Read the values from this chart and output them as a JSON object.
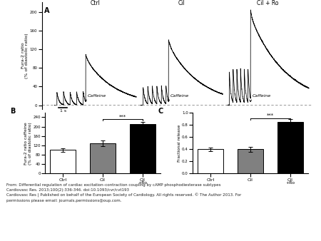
{
  "title_A": "A",
  "title_B": "B",
  "title_C": "C",
  "condition_labels": [
    "Ctrl",
    "Cil",
    "Cil + Ro"
  ],
  "caffeine_label": "Caffeine",
  "bar_categories": [
    "Ctrl",
    "Cil",
    "Cil\n+Ro"
  ],
  "bar_values_B": [
    100,
    130,
    210
  ],
  "bar_errors_B": [
    8,
    12,
    10
  ],
  "bar_values_C": [
    0.4,
    0.4,
    0.85
  ],
  "bar_errors_C": [
    0.03,
    0.04,
    0.04
  ],
  "bar_colors": [
    "white",
    "#808080",
    "black"
  ],
  "bar_edgecolor": "black",
  "ylabel_B": "Fura-2 ratio caffeine\n(% of diastolic ratio)",
  "ylabel_C": "Fractional release",
  "ylim_B": [
    0,
    260
  ],
  "ylim_C": [
    0.0,
    1.0
  ],
  "yticks_B": [
    0,
    40,
    80,
    120,
    160,
    200,
    240
  ],
  "yticks_C": [
    0.0,
    0.2,
    0.4,
    0.6,
    0.8,
    1.0
  ],
  "sig_label": "***",
  "trace_ylabel": "Fura-2 ratio\n(% of diastolic ratio)",
  "trace_yticks": [
    0,
    40,
    80,
    120,
    160,
    200
  ],
  "timescale_label": "1 s",
  "footer_line1": "From: Differential regulation of cardiac excitation–contraction coupling by cAMP phosphodiesterase subtypes",
  "footer_line2": "Cardiovasc Res. 2013;100(2):336-346. doi:10.1093/cvr/cvt193",
  "footer_line3": "Cardiovasc Res | Published on behalf of the European Society of Cardiology. All rights reserved. © The Author 2013. For",
  "footer_line4": "permissions please email: journals.permissions@oup.com.",
  "background_color": "#ffffff",
  "footer_bg": "#d8d8d8",
  "separator_color": "#aaaaaa"
}
